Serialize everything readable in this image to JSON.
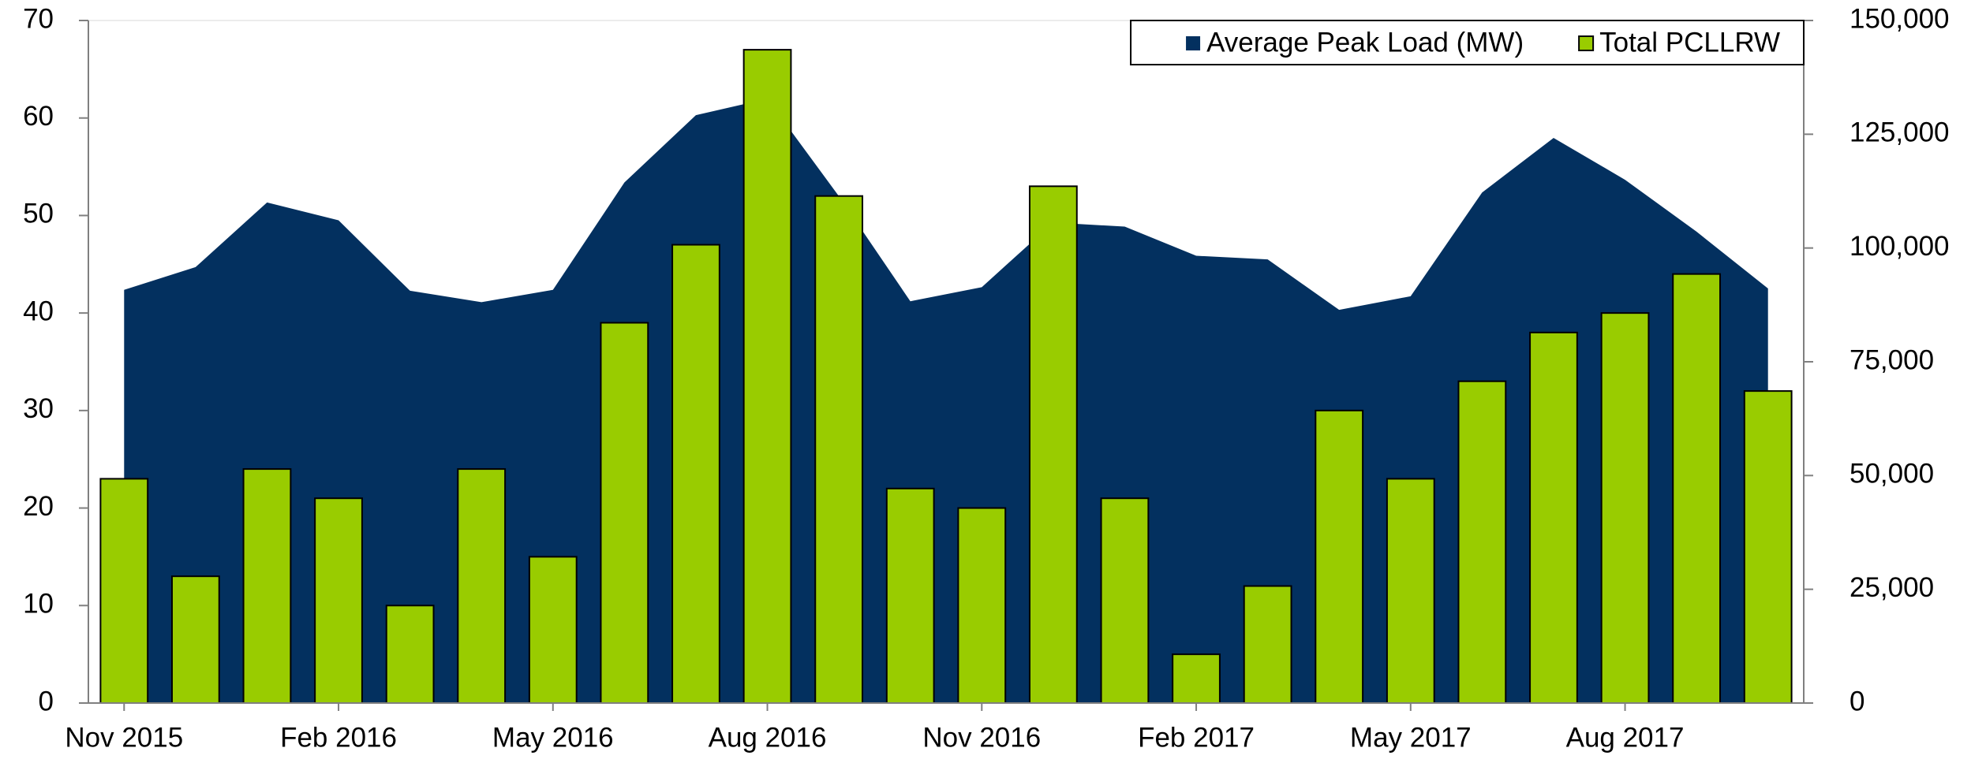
{
  "chart_data": {
    "type": "combo",
    "categories": [
      "Nov 2015",
      null,
      null,
      "Feb 2016",
      null,
      null,
      "May 2016",
      null,
      null,
      "Aug 2016",
      null,
      null,
      "Nov 2016",
      null,
      null,
      "Feb 2017",
      null,
      null,
      "May 2017",
      null,
      null,
      "Aug 2017",
      null,
      null
    ],
    "series": [
      {
        "name": "Average Peak Load (MW)",
        "type": "area",
        "axis": "y2",
        "color": "#03305f",
        "values": [
          90800,
          95800,
          110000,
          106100,
          90600,
          88100,
          90800,
          114400,
          129200,
          132800,
          111400,
          88300,
          91400,
          105600,
          104700,
          98300,
          97500,
          86400,
          89400,
          112200,
          124200,
          115000,
          103600,
          91100
        ]
      },
      {
        "name": "Total PCLLRW",
        "type": "bar",
        "color": "#99cc00",
        "values": [
          23,
          13,
          24,
          21,
          10,
          24,
          15,
          39,
          47,
          67,
          52,
          22,
          20,
          53,
          21,
          5,
          12,
          30,
          23,
          33,
          38,
          40,
          44,
          32
        ]
      }
    ],
    "ylim": [
      0,
      70
    ],
    "yticks": [
      0,
      10,
      20,
      30,
      40,
      50,
      60,
      70
    ],
    "y2lim": [
      0,
      150000
    ],
    "y2ticks": [
      0,
      {
        "value": 25000,
        "label": "25,000"
      },
      {
        "value": 50000,
        "label": "50,000"
      },
      {
        "value": 75000,
        "label": "75,000"
      },
      {
        "value": 100000,
        "label": "100,000"
      },
      {
        "value": 125000,
        "label": "125,000"
      },
      {
        "value": 150000,
        "label": "150,000"
      }
    ],
    "grid": false,
    "legend": "top-right"
  }
}
